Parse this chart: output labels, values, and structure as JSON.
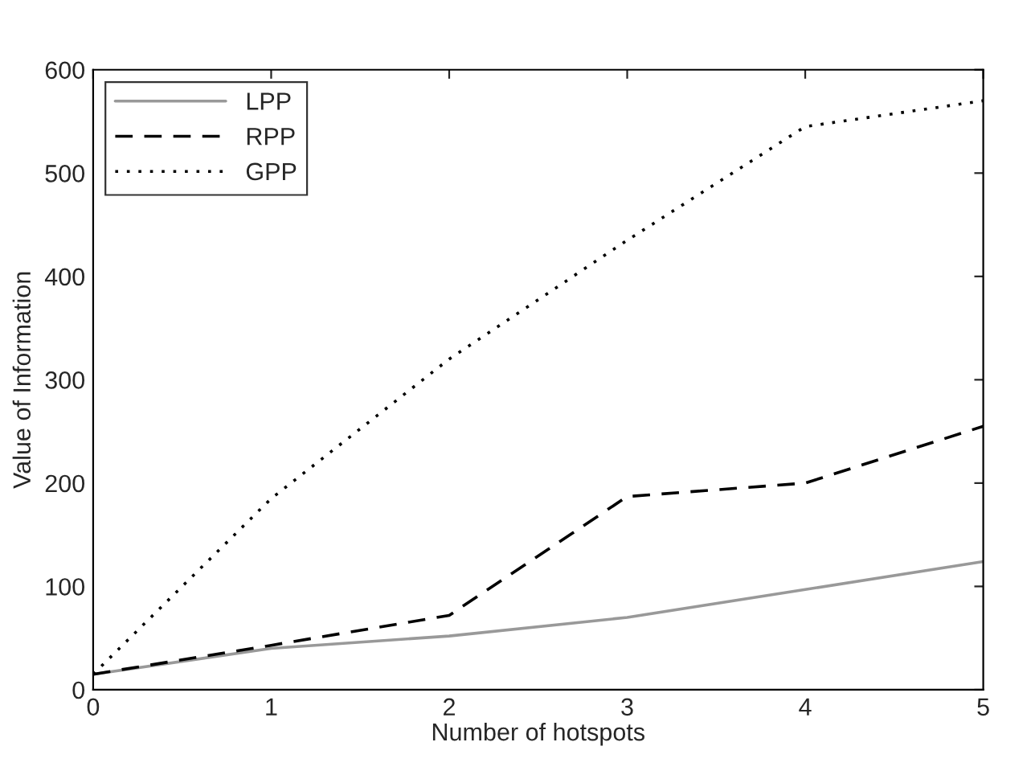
{
  "chart_data": {
    "type": "line",
    "xlabel": "Number of hotspots",
    "ylabel": "Value of Information",
    "x": [
      0,
      1,
      2,
      3,
      4,
      5
    ],
    "series": [
      {
        "name": "LPP",
        "color": "#999999",
        "line_style": "solid",
        "values": [
          15,
          40,
          52,
          70,
          97,
          124
        ]
      },
      {
        "name": "RPP",
        "color": "#000000",
        "line_style": "dashed",
        "values": [
          15,
          43,
          72,
          187,
          200,
          255
        ]
      },
      {
        "name": "GPP",
        "color": "#000000",
        "line_style": "dotted",
        "values": [
          15,
          185,
          320,
          435,
          545,
          570
        ]
      }
    ],
    "xlim": [
      0,
      5
    ],
    "xticks": [
      0,
      1,
      2,
      3,
      4,
      5
    ],
    "ylim": [
      0,
      600
    ],
    "yticks": [
      0,
      100,
      200,
      300,
      400,
      500,
      600
    ],
    "legend": "top left",
    "grid": false
  }
}
